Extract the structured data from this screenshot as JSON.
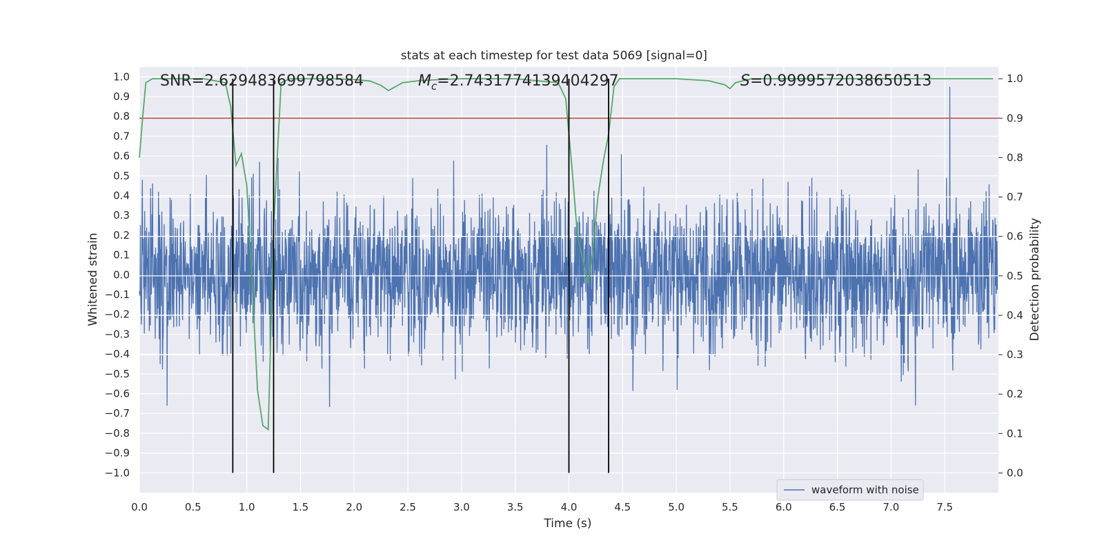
{
  "chart_data": {
    "type": "line",
    "title": "stats at each timestep for test data 5069 [signal=0]",
    "xlabel": "Time (s)",
    "ylabel": "Whitened strain",
    "y2label": "Detection probability",
    "xlim": [
      0.0,
      8.0
    ],
    "ylim": [
      -1.1,
      1.05
    ],
    "y2lim": [
      -0.05,
      1.03
    ],
    "x_ticks": [
      "0.0",
      "0.5",
      "1.0",
      "1.5",
      "2.0",
      "2.5",
      "3.0",
      "3.5",
      "4.0",
      "4.5",
      "5.0",
      "5.5",
      "6.0",
      "6.5",
      "7.0",
      "7.5"
    ],
    "y_ticks": [
      "1.0",
      "0.9",
      "0.8",
      "0.7",
      "0.6",
      "0.5",
      "0.4",
      "0.3",
      "0.2",
      "0.1",
      "0.0",
      "-0.1",
      "-0.2",
      "-0.3",
      "-0.4",
      "-0.5",
      "-0.6",
      "-0.7",
      "-0.8",
      "-0.9",
      "-1.0"
    ],
    "y2_ticks": [
      "1.0",
      "0.9",
      "0.8",
      "0.7",
      "0.6",
      "0.5",
      "0.4",
      "0.3",
      "0.2",
      "0.1",
      "0.0"
    ],
    "annotations": {
      "snr": "SNR=2.629483699798584",
      "mc_symbol": "M",
      "mc_sub": "c",
      "mc_value": "=2.7431774139404297",
      "s_symbol": "S",
      "s_value": "=0.9999572038650513"
    },
    "threshold": 0.9,
    "vertical_lines": [
      0.87,
      1.25,
      4.0,
      4.37
    ],
    "series": [
      {
        "name": "waveform with noise",
        "color": "#4c72b0",
        "description": "noise-dominated whitened strain, roughly within -1.0 to 0.95"
      },
      {
        "name": "detection probability",
        "color": "#55a868",
        "x": [
          0.0,
          0.03,
          0.06,
          0.12,
          0.2,
          0.4,
          0.6,
          0.8,
          0.85,
          0.9,
          0.95,
          1.0,
          1.05,
          1.1,
          1.15,
          1.2,
          1.25,
          1.28,
          1.32,
          1.4,
          1.6,
          1.8,
          2.0,
          2.15,
          2.25,
          2.32,
          2.45,
          2.6,
          2.8,
          3.0,
          3.5,
          3.9,
          3.97,
          4.03,
          4.08,
          4.13,
          4.18,
          4.22,
          4.27,
          4.32,
          4.37,
          4.42,
          4.47,
          4.6,
          5.0,
          5.3,
          5.45,
          5.5,
          5.55,
          5.7,
          6.0,
          6.5,
          7.0,
          7.5,
          7.95
        ],
        "y": [
          0.8,
          0.9,
          0.99,
          1.0,
          1.0,
          1.0,
          1.0,
          0.99,
          0.93,
          0.78,
          0.81,
          0.73,
          0.48,
          0.21,
          0.12,
          0.11,
          0.62,
          0.78,
          0.99,
          1.0,
          1.0,
          1.0,
          0.998,
          0.994,
          0.983,
          0.97,
          0.99,
          0.995,
          0.998,
          1.0,
          1.0,
          0.99,
          0.95,
          0.77,
          0.6,
          0.54,
          0.48,
          0.56,
          0.7,
          0.79,
          0.86,
          0.98,
          1.0,
          1.0,
          1.0,
          0.995,
          0.985,
          0.975,
          0.99,
          1.0,
          1.0,
          1.0,
          1.0,
          1.0,
          1.0
        ]
      }
    ],
    "legend": {
      "position": "bottom-right",
      "entries": [
        "waveform with noise"
      ]
    }
  }
}
